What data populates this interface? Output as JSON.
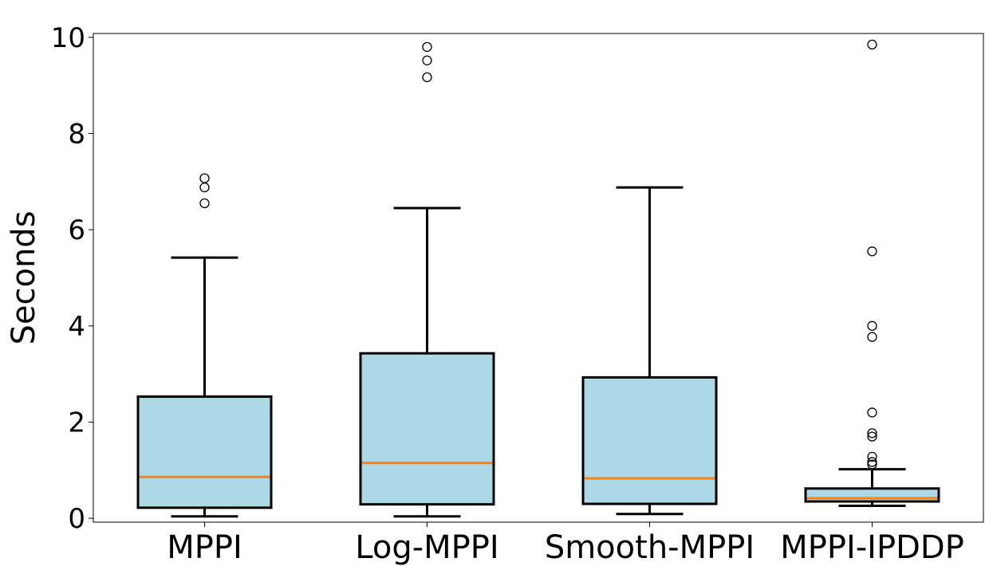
{
  "chart_data": {
    "type": "box",
    "title": "",
    "xlabel": "",
    "ylabel": "Seconds",
    "ylim": [
      -0.08,
      10.08
    ],
    "yticks": [
      0,
      2,
      4,
      6,
      8,
      10
    ],
    "ytick_labels": [
      "0",
      "2",
      "4",
      "6",
      "8",
      "10"
    ],
    "categories": [
      "MPPI",
      "Log-MPPI",
      "Smooth-MPPI",
      "MPPI-IPDDP"
    ],
    "series": [
      {
        "name": "MPPI",
        "whisker_low": 0.04,
        "q1": 0.22,
        "median": 0.86,
        "q3": 2.53,
        "whisker_high": 5.42,
        "outliers": [
          6.55,
          6.88,
          7.07
        ]
      },
      {
        "name": "Log-MPPI",
        "whisker_low": 0.04,
        "q1": 0.29,
        "median": 1.15,
        "q3": 3.43,
        "whisker_high": 6.45,
        "outliers": [
          9.17,
          9.52,
          9.8
        ]
      },
      {
        "name": "Smooth-MPPI",
        "whisker_low": 0.09,
        "q1": 0.3,
        "median": 0.83,
        "q3": 2.93,
        "whisker_high": 6.88,
        "outliers": []
      },
      {
        "name": "MPPI-IPDDP",
        "whisker_low": 0.26,
        "q1": 0.35,
        "median": 0.42,
        "q3": 0.62,
        "whisker_high": 1.02,
        "outliers": [
          1.12,
          1.17,
          1.28,
          1.7,
          1.77,
          2.2,
          3.77,
          4.0,
          5.55,
          9.85
        ]
      }
    ],
    "colors": {
      "box_fill": "#add8e6",
      "box_edge": "#000000",
      "median": "#ff7f0e",
      "flier": "#000000"
    },
    "grid": false,
    "legend": "none"
  }
}
